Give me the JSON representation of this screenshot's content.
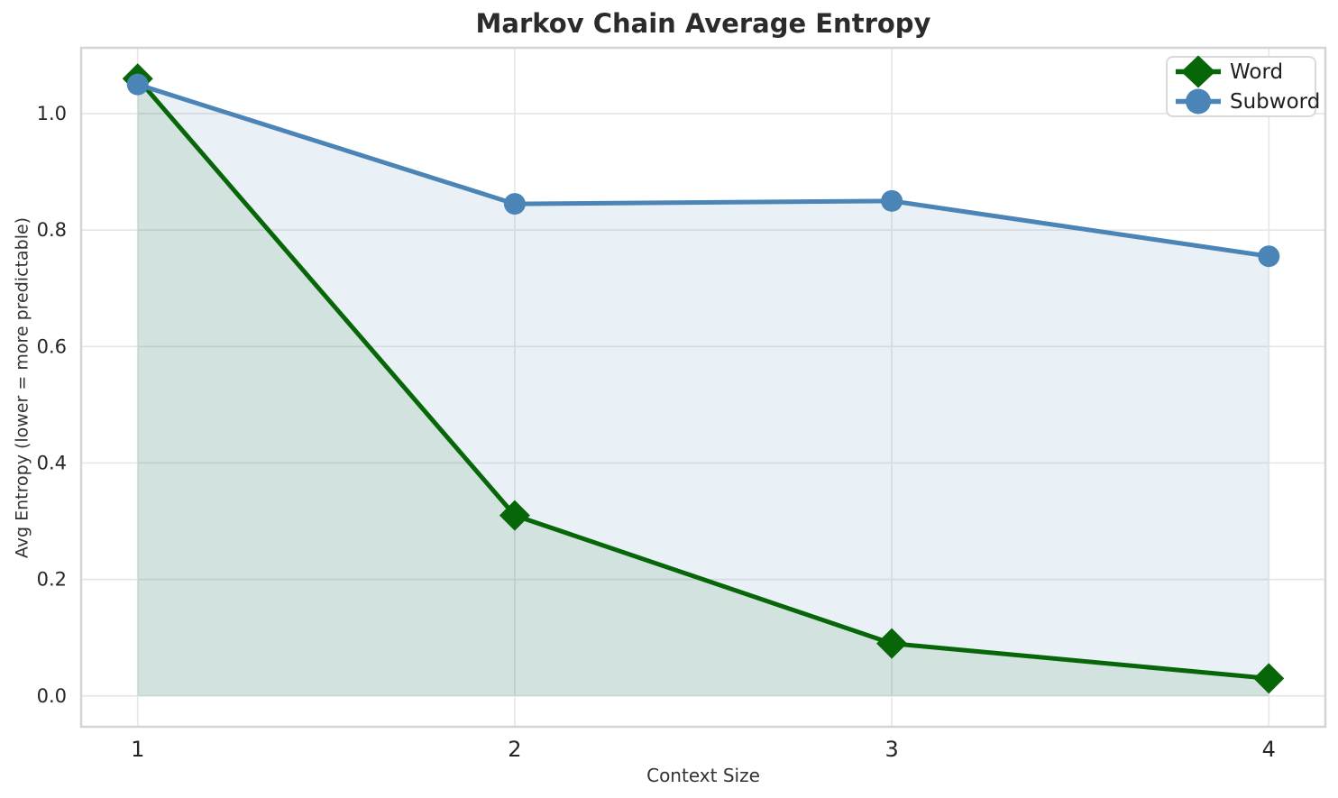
{
  "chart_data": {
    "type": "line",
    "title": "Markov Chain Average Entropy",
    "xlabel": "Context Size",
    "ylabel": "Avg Entropy (lower = more predictable)",
    "x": [
      1,
      2,
      3,
      4
    ],
    "series": [
      {
        "name": "Word",
        "values": [
          1.06,
          0.31,
          0.09,
          0.03
        ],
        "color": "#076607",
        "marker": "diamond",
        "fill_color": "rgba(0,100,0,0.10)",
        "area_to_zero": true
      },
      {
        "name": "Subword",
        "values": [
          1.05,
          0.845,
          0.85,
          0.755
        ],
        "color": "#4b84b6",
        "marker": "circle",
        "fill_color": "rgba(70,130,180,0.12)",
        "area_to_zero": true
      }
    ],
    "xticks": [
      "1",
      "2",
      "3",
      "4"
    ],
    "yticks": [
      "0.0",
      "0.2",
      "0.4",
      "0.6",
      "0.8",
      "1.0"
    ],
    "xlim": [
      0.85,
      4.15
    ],
    "ylim": [
      -0.053,
      1.113
    ],
    "grid": true,
    "legend_position": "upper right",
    "grid_color": "#e7e7e7",
    "spine_color": "#d4d4d4",
    "title_color": "#2b2b2b",
    "tick_color": "#262626"
  }
}
